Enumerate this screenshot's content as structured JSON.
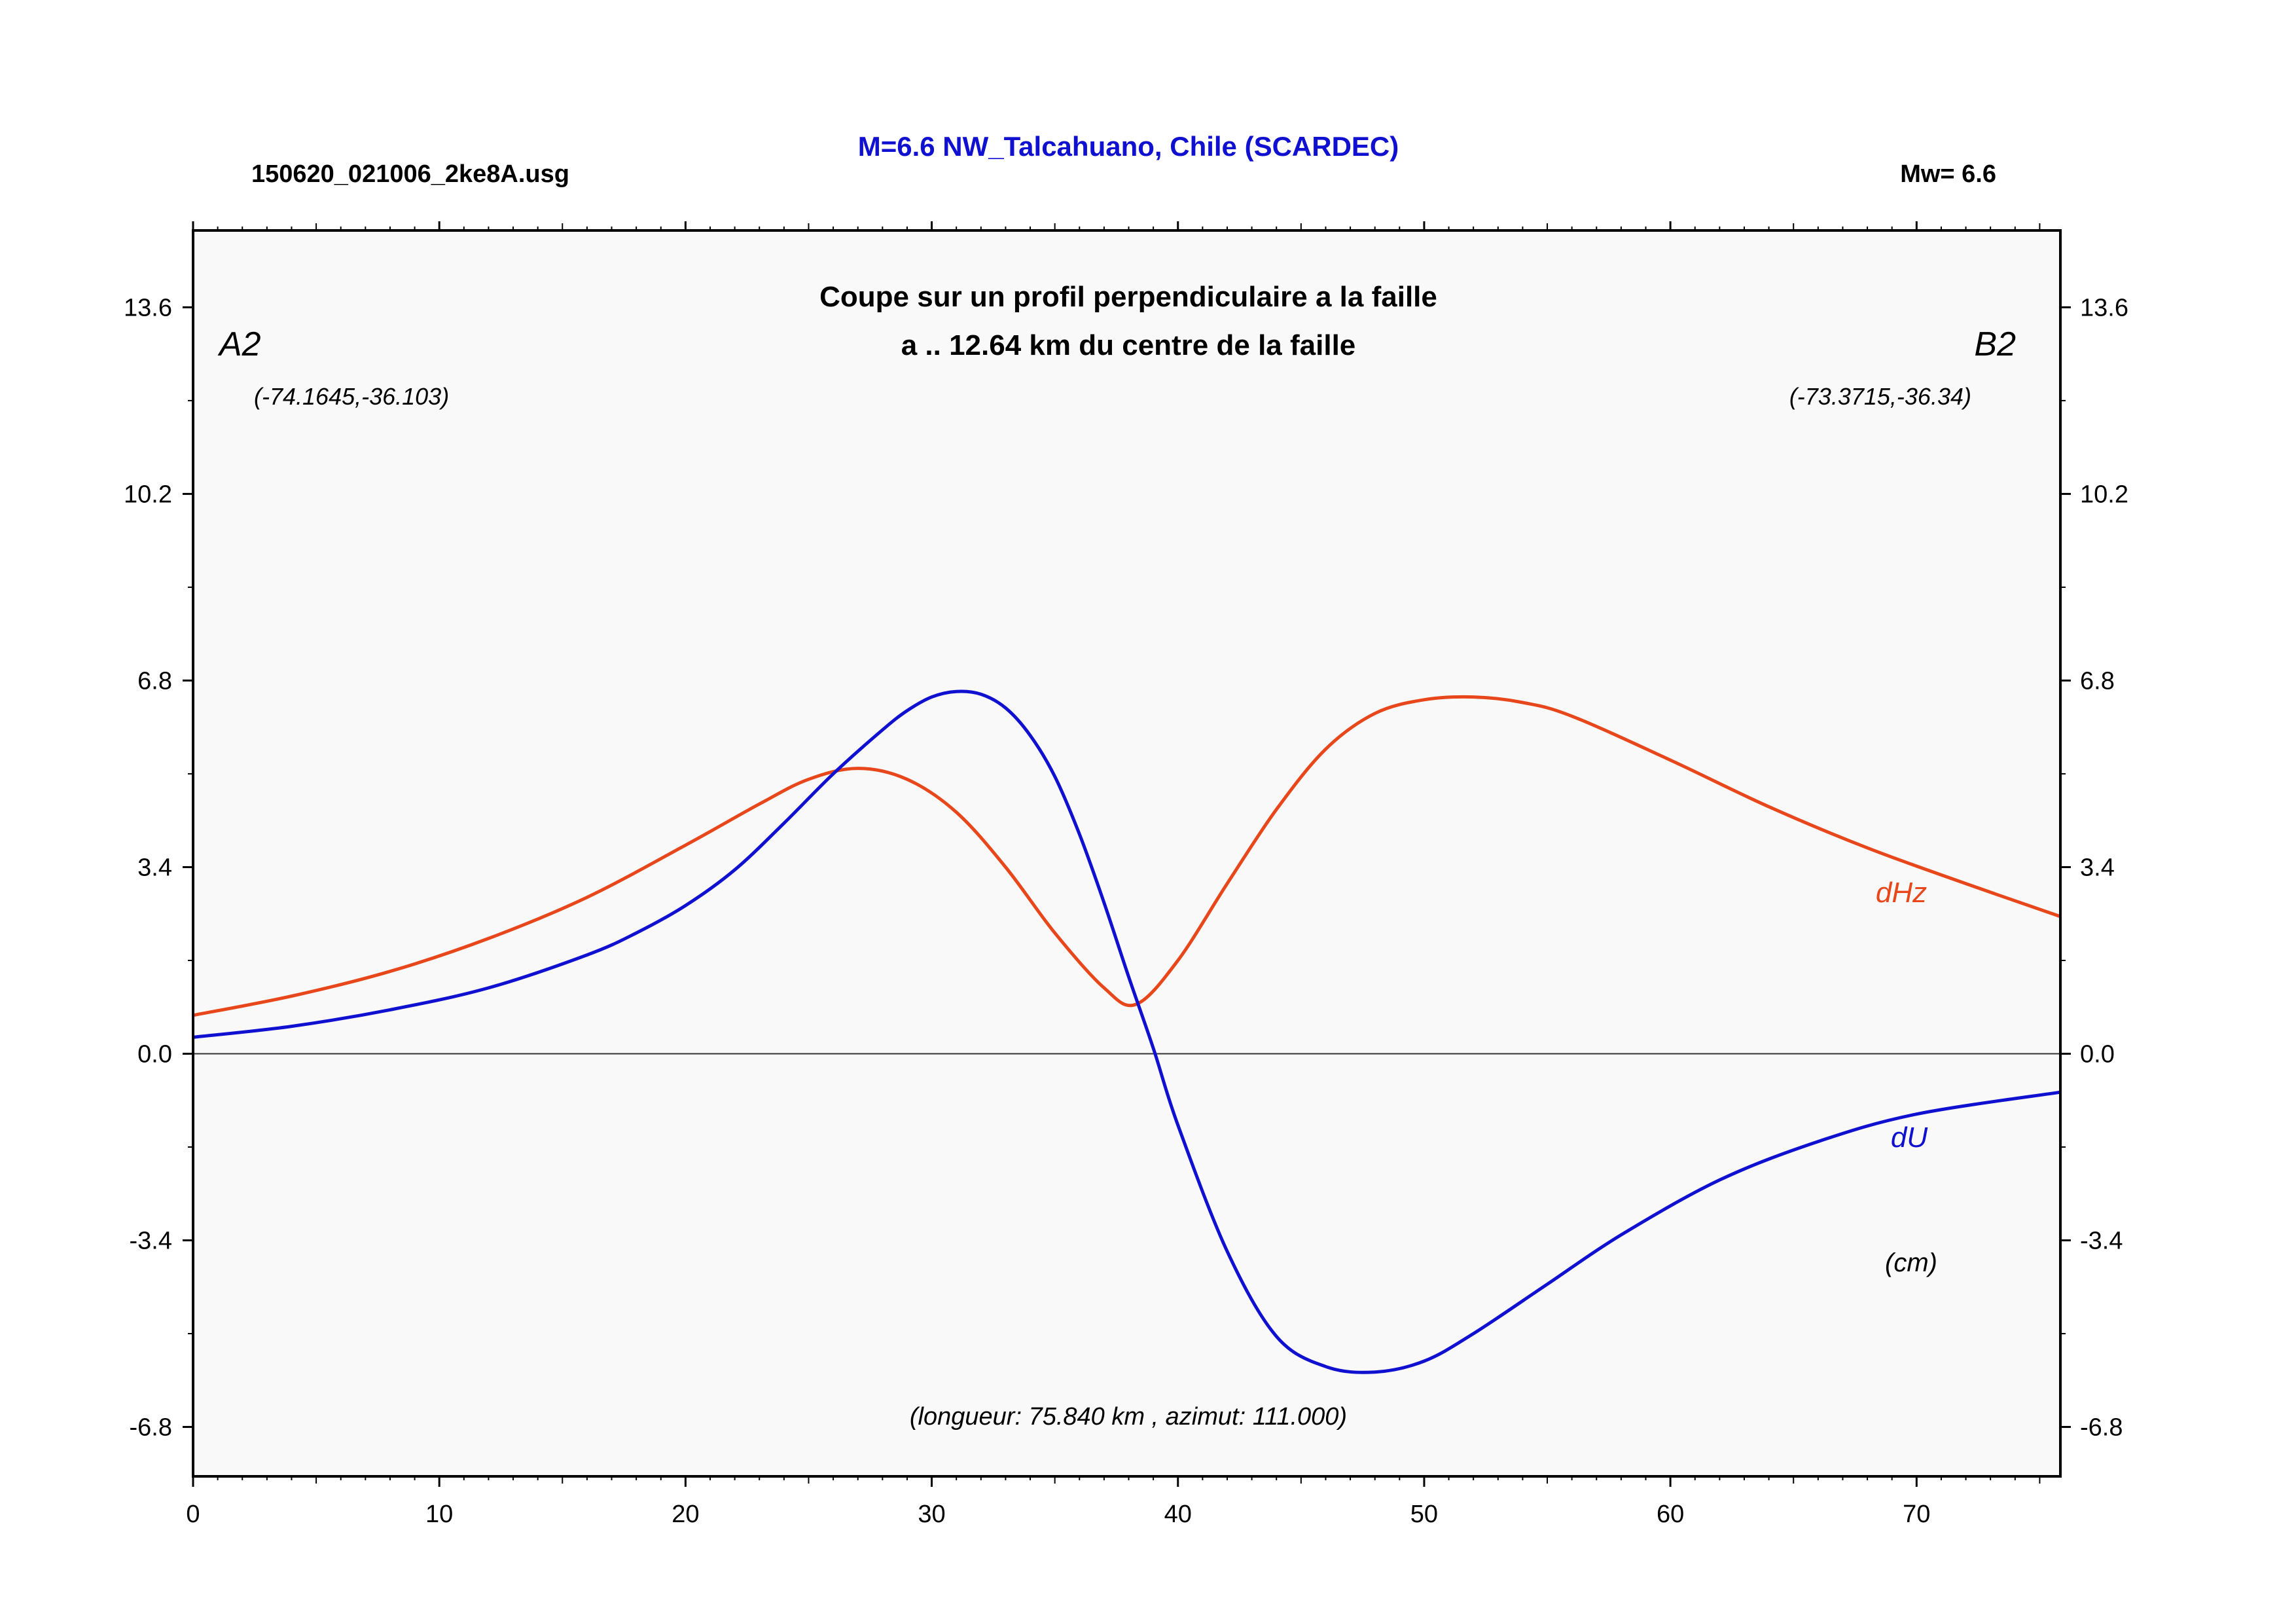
{
  "header": {
    "filename": "150620_021006_2ke8A.usg",
    "title": "M=6.6 NW_Talcahuano, Chile (SCARDEC)",
    "magnitude": "Mw= 6.6"
  },
  "colors": {
    "title": "#1010d0",
    "dHz": "#e8471c",
    "dU": "#1010d0",
    "plot_bg": "#f9f9f9",
    "axis": "#000000"
  },
  "chart_data": {
    "type": "line",
    "title": "Coupe sur un profil perpendiculaire a la faille",
    "subtitle": "a .. 12.64 km du centre de la faille",
    "xlim": [
      0,
      75.84
    ],
    "ylim": [
      -7.7,
      15.0
    ],
    "x_ticks": [
      0,
      10,
      20,
      30,
      40,
      50,
      60,
      70
    ],
    "x_tick_labels": [
      "0",
      "10",
      "20",
      "30",
      "40",
      "50",
      "60",
      "70"
    ],
    "y_ticks": [
      -6.8,
      -3.4,
      0.0,
      3.4,
      6.8,
      10.2,
      13.6
    ],
    "y_tick_labels": [
      "-6.8",
      "-3.4",
      "0.0",
      "3.4",
      "6.8",
      "10.2",
      "13.6"
    ],
    "grid": false,
    "zero_line": true,
    "annotations": {
      "left_label": "A2",
      "right_label": "B2",
      "left_coords": "(-74.1645,-36.103)",
      "right_coords": "(-73.3715,-36.34)",
      "units": "(cm)",
      "footer": "(longueur: 75.840 km , azimut: 111.000)"
    },
    "series": [
      {
        "name": "dHz",
        "x": [
          0,
          4,
          8,
          12,
          16,
          20,
          23,
          25,
          27,
          29,
          31,
          33,
          35,
          37,
          38.3,
          40,
          42,
          44,
          46,
          48,
          50,
          52,
          54,
          56,
          60,
          64,
          68,
          72,
          75.84
        ],
        "y": [
          0.7,
          1.05,
          1.5,
          2.1,
          2.85,
          3.8,
          4.55,
          5.0,
          5.2,
          5.0,
          4.4,
          3.4,
          2.2,
          1.2,
          0.9,
          1.7,
          3.1,
          4.45,
          5.55,
          6.2,
          6.45,
          6.5,
          6.4,
          6.15,
          5.35,
          4.5,
          3.75,
          3.1,
          2.5
        ]
      },
      {
        "name": "dU",
        "x": [
          0,
          4,
          8,
          12,
          16,
          18,
          20,
          22,
          24,
          26,
          28,
          29,
          30,
          31,
          32,
          33,
          34,
          35,
          36,
          37,
          38,
          39,
          40,
          42,
          44,
          46,
          48,
          50,
          52,
          55,
          58,
          62,
          66,
          70,
          75.84
        ],
        "y": [
          0.3,
          0.5,
          0.8,
          1.2,
          1.8,
          2.2,
          2.7,
          3.35,
          4.2,
          5.1,
          5.9,
          6.25,
          6.5,
          6.6,
          6.55,
          6.3,
          5.8,
          5.05,
          4.0,
          2.75,
          1.4,
          0.1,
          -1.3,
          -3.6,
          -5.15,
          -5.7,
          -5.8,
          -5.6,
          -5.1,
          -4.2,
          -3.3,
          -2.3,
          -1.6,
          -1.1,
          -0.7
        ]
      }
    ]
  }
}
